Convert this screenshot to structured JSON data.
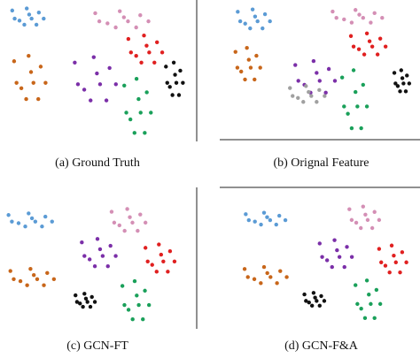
{
  "chart_data": [
    {
      "type": "scatter",
      "title": "(a) Ground Truth",
      "xlim": [
        0,
        100
      ],
      "ylim": [
        100,
        0
      ],
      "series": [
        {
          "color": "#5b9bd5",
          "x": [
            4.2,
            8.1,
            12,
            14.6,
            18.5,
            10.7,
            17.2,
            21.1,
            5.5,
            13.3
          ],
          "y": [
            4.5,
            12,
            3,
            10.5,
            6,
            15,
            15,
            10.5,
            10.5,
            7.5
          ]
        },
        {
          "color": "#d48fb5",
          "x": [
            48.8,
            55.4,
            62,
            66.4,
            73,
            59.8,
            70.8,
            77.4,
            51,
            64.2
          ],
          "y": [
            6.5,
            14,
            5,
            12.5,
            8,
            17,
            17,
            12.5,
            12.5,
            9.5
          ]
        },
        {
          "color": "#e02020",
          "x": [
            66.6,
            70.8,
            75,
            77.8,
            82,
            73.6,
            80.6,
            84.8,
            68,
            76.4
          ],
          "y": [
            25.5,
            38,
            23,
            35.5,
            28,
            43,
            43,
            35.5,
            35.5,
            30.5
          ]
        },
        {
          "color": "#c8661a",
          "x": [
            5.2,
            9.1,
            13,
            15.6,
            19.5,
            11.7,
            18.2,
            22.1,
            6.5,
            14.3
          ],
          "y": [
            42,
            62,
            38,
            58,
            46,
            70,
            70,
            58,
            58,
            50
          ]
        },
        {
          "color": "#7b2fa8",
          "x": [
            37.8,
            42.9,
            48,
            51.4,
            56.5,
            46.3,
            54.8,
            59.9,
            39.5,
            49.7
          ],
          "y": [
            43,
            63,
            39,
            59,
            47,
            71,
            71,
            59,
            59,
            51
          ]
        },
        {
          "color": "#1aa05a",
          "x": [
            64.4,
            67.7,
            71,
            73.2,
            76.5,
            69.9,
            75.4,
            78.7,
            65.5,
            72.1
          ],
          "y": [
            60,
            85,
            55,
            80,
            65,
            95,
            95,
            80,
            80,
            70
          ]
        },
        {
          "color": "#111111",
          "x": [
            86.8,
            88.9,
            91,
            92.4,
            94.5,
            90.3,
            93.8,
            95.9,
            87.5,
            91.7
          ],
          "y": [
            46,
            61,
            43,
            58,
            49,
            67,
            67,
            58,
            58,
            52
          ]
        }
      ]
    },
    {
      "type": "scatter",
      "title": "(b) Orignal Feature",
      "xlim": [
        0,
        100
      ],
      "ylim": [
        100,
        0
      ],
      "series": [
        {
          "color": "#5b9bd5",
          "x": [
            6.2,
            10.1,
            14,
            16.6,
            20.5,
            12.7,
            19.2,
            23.1,
            7.5,
            15.3
          ],
          "y": [
            5.6,
            14.6,
            3.8,
            12.8,
            7.4,
            18.2,
            18.2,
            12.8,
            12.8,
            9.2
          ]
        },
        {
          "color": "#d48fb5",
          "x": [
            56,
            62,
            68,
            72,
            78,
            66,
            76,
            82,
            58,
            70
          ],
          "y": [
            5.4,
            11.4,
            4.2,
            10.2,
            6.6,
            13.8,
            13.8,
            10.2,
            10.2,
            7.8
          ]
        },
        {
          "color": "#e02020",
          "x": [
            65.6,
            69.8,
            74,
            76.8,
            81,
            72.6,
            79.6,
            83.8,
            67,
            75.4
          ],
          "y": [
            24,
            34,
            22,
            32,
            26,
            38,
            38,
            32,
            32,
            28
          ]
        },
        {
          "color": "#c8661a",
          "x": [
            5,
            8,
            11,
            13,
            16,
            10,
            15,
            18,
            6,
            12
          ],
          "y": [
            36,
            51,
            33,
            48,
            39,
            57,
            57,
            48,
            48,
            42
          ]
        },
        {
          "color": "#7b2fa8",
          "x": [
            36.4,
            41.2,
            46,
            49.2,
            54,
            44.4,
            52.4,
            57.2,
            38,
            47.6
          ],
          "y": [
            46,
            61,
            43,
            58,
            49,
            67,
            67,
            58,
            58,
            52
          ]
        },
        {
          "color": "#1aa05a",
          "x": [
            61,
            64,
            67,
            69,
            72,
            66,
            71,
            74,
            62,
            68
          ],
          "y": [
            55.5,
            83,
            50,
            77.5,
            61,
            94,
            94,
            77.5,
            77.5,
            66.5
          ]
        },
        {
          "color": "#111111",
          "x": [
            88.4,
            90.2,
            92,
            93.2,
            95,
            91.4,
            94.4,
            96.2,
            89,
            92.6
          ],
          "y": [
            52,
            62,
            50,
            60,
            54,
            66,
            66,
            60,
            60,
            56
          ]
        },
        {
          "color": "#a0a0a0",
          "x": [
            33.6,
            37.8,
            42,
            44.8,
            49,
            40.6,
            47.6,
            51.8,
            35,
            43.4
          ],
          "y": [
            63.5,
            71,
            62,
            69.5,
            65,
            74,
            74,
            69.5,
            69.5,
            66.5
          ]
        }
      ]
    },
    {
      "type": "scatter",
      "title": "(c) GCN-FT",
      "xlim": [
        0,
        100
      ],
      "ylim": [
        100,
        0
      ],
      "series": [
        {
          "color": "#5b9bd5",
          "x": [
            2.2,
            7.6,
            13,
            16.6,
            22,
            11.2,
            20.2,
            25.6,
            4,
            14.8
          ],
          "y": [
            16.4,
            22.4,
            15.2,
            21.2,
            17.6,
            24.8,
            24.8,
            21.2,
            21.2,
            18.8
          ]
        },
        {
          "color": "#d48fb5",
          "x": [
            57.6,
            61.8,
            66,
            68.8,
            73,
            64.6,
            71.6,
            75.8,
            59,
            67.4
          ],
          "y": [
            14,
            24,
            12,
            22,
            16,
            28,
            28,
            22,
            22,
            18
          ]
        },
        {
          "color": "#7b2fa8",
          "x": [
            41.6,
            45.8,
            50,
            52.8,
            57,
            48.6,
            55.6,
            59.8,
            43,
            51.4
          ],
          "y": [
            36.5,
            49,
            34,
            46.5,
            39,
            54,
            54,
            46.5,
            46.5,
            41.5
          ]
        },
        {
          "color": "#e02020",
          "x": [
            75.8,
            79.4,
            83,
            85.4,
            89,
            81.8,
            87.8,
            91.4,
            77,
            84.2
          ],
          "y": [
            40.5,
            53,
            38,
            50.5,
            43,
            58,
            58,
            50.5,
            50.5,
            45.5
          ]
        },
        {
          "color": "#c8661a",
          "x": [
            3.2,
            8.6,
            14,
            17.6,
            23,
            12.2,
            21.2,
            26.6,
            5,
            15.8
          ],
          "y": [
            57.5,
            65,
            56,
            63.5,
            59,
            68,
            68,
            63.5,
            63.5,
            60.5
          ]
        },
        {
          "color": "#111111",
          "x": [
            38.2,
            40.6,
            43,
            44.6,
            47,
            42.2,
            46.2,
            48.6,
            39,
            43.8
          ],
          "y": [
            75.4,
            81.4,
            74.2,
            80.2,
            76.6,
            83.8,
            83.8,
            80.2,
            80.2,
            77.8
          ]
        },
        {
          "color": "#1aa05a",
          "x": [
            63.4,
            66.7,
            70,
            72.2,
            75.5,
            68.9,
            74.4,
            77.7,
            64.5,
            71.1
          ],
          "y": [
            68.5,
            86,
            65,
            82.5,
            72,
            93,
            93,
            82.5,
            82.5,
            75.5
          ]
        }
      ]
    },
    {
      "type": "scatter",
      "title": "(d) GCN-F&A",
      "xlim": [
        0,
        100
      ],
      "ylim": [
        100,
        0
      ],
      "series": [
        {
          "color": "#5b9bd5",
          "x": [
            10.4,
            15.2,
            20,
            23.2,
            28,
            18.4,
            26.4,
            31.2,
            12,
            21.6
          ],
          "y": [
            14.7,
            20.2,
            13.6,
            19.1,
            15.8,
            22.4,
            22.4,
            19.1,
            19.1,
            16.9
          ]
        },
        {
          "color": "#d48fb5",
          "x": [
            64.8,
            68.4,
            72,
            74.4,
            78,
            70.8,
            76.8,
            80.4,
            66,
            73.2
          ],
          "y": [
            11,
            21,
            9,
            19,
            13,
            25,
            25,
            19,
            19,
            15
          ]
        },
        {
          "color": "#7b2fa8",
          "x": [
            49.2,
            53.1,
            57,
            59.6,
            63.5,
            55.7,
            62.2,
            66.1,
            50.5,
            58.3
          ],
          "y": [
            36.5,
            49,
            34,
            46.5,
            39,
            54,
            54,
            46.5,
            46.5,
            41.5
          ]
        },
        {
          "color": "#e02020",
          "x": [
            80.4,
            83.7,
            87,
            89.2,
            92.5,
            85.9,
            91.4,
            94.7,
            81.5,
            88.1
          ],
          "y": [
            40.5,
            53,
            38,
            50.5,
            43,
            58,
            58,
            50.5,
            50.5,
            45.5
          ]
        },
        {
          "color": "#c8661a",
          "x": [
            9.8,
            14.9,
            20,
            23.4,
            28.5,
            18.3,
            26.8,
            31.9,
            11.5,
            21.7
          ],
          "y": [
            55.5,
            63,
            54,
            61.5,
            57,
            66,
            66,
            61.5,
            61.5,
            58.5
          ]
        },
        {
          "color": "#111111",
          "x": [
            41.2,
            43.6,
            46,
            47.6,
            50,
            45.2,
            49.2,
            51.6,
            42,
            46.8
          ],
          "y": [
            74.4,
            80.4,
            73.2,
            79.2,
            75.6,
            82.8,
            82.8,
            79.2,
            79.2,
            76.8
          ]
        },
        {
          "color": "#1aa05a",
          "x": [
            68,
            71,
            74,
            76,
            79,
            73,
            78,
            81,
            69,
            75
          ],
          "y": [
            67.5,
            85,
            64,
            81.5,
            71,
            92,
            92,
            81.5,
            81.5,
            74.5
          ]
        }
      ]
    }
  ]
}
